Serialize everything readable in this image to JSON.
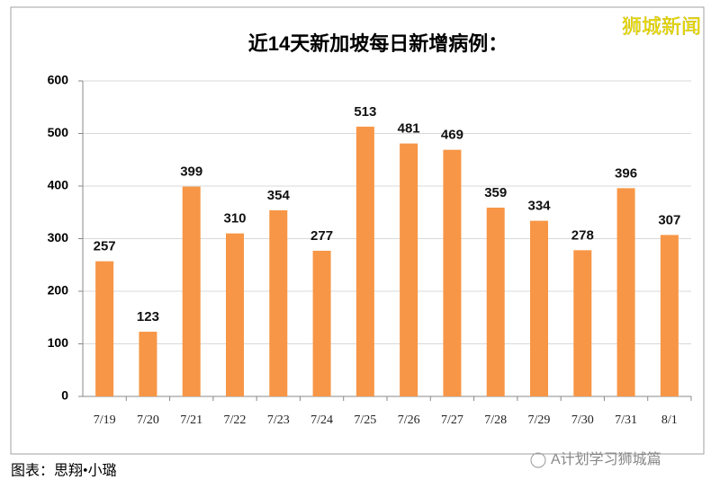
{
  "chart_data": {
    "type": "bar",
    "title": "近14天新加坡每日新增病例：",
    "categories": [
      "7/19",
      "7/20",
      "7/21",
      "7/22",
      "7/23",
      "7/24",
      "7/25",
      "7/26",
      "7/27",
      "7/28",
      "7/29",
      "7/30",
      "7/31",
      "8/1"
    ],
    "values": [
      257,
      123,
      399,
      310,
      354,
      277,
      513,
      481,
      469,
      359,
      334,
      278,
      396,
      307
    ],
    "color": "#f79646",
    "ylim": [
      0,
      600
    ],
    "yticks": [
      0,
      100,
      200,
      300,
      400,
      500,
      600
    ],
    "grid": true
  },
  "watermark": "狮城新闻",
  "caption": "图表：思翔•小璐",
  "source_badge": "A计划学习狮城篇"
}
